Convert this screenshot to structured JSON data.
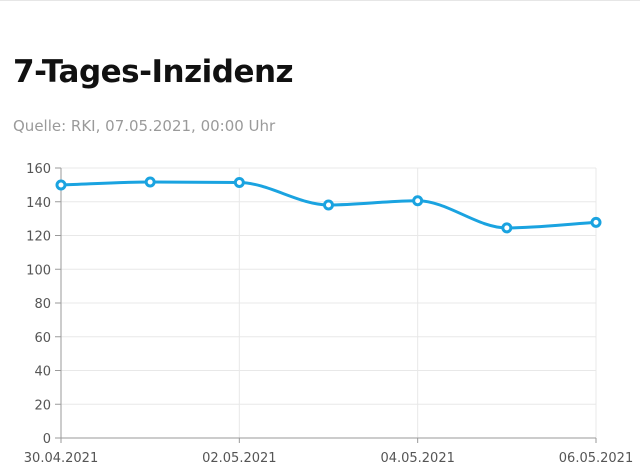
{
  "header": {
    "title": "7-Tages-Inzidenz",
    "source": "Quelle: RKI, 07.05.2021, 00:00 Uhr"
  },
  "colors": {
    "line": "#1aa3e0",
    "grid": "#e8e8e8",
    "axis": "#9a9a9a"
  },
  "chart_data": {
    "type": "line",
    "x": [
      "30.04.2021",
      "01.05.2021",
      "02.05.2021",
      "03.05.2021",
      "04.05.2021",
      "05.05.2021",
      "06.05.2021"
    ],
    "x_tick_labels": [
      "30.04.2021",
      "02.05.2021",
      "04.05.2021",
      "06.05.2021"
    ],
    "series": [
      {
        "values": [
          149.9,
          151.7,
          151.4,
          138.1,
          140.6,
          124.5,
          127.8
        ]
      }
    ],
    "y_ticks": [
      0,
      20,
      40,
      60,
      80,
      100,
      120,
      140,
      160
    ],
    "ylim": [
      0,
      160
    ],
    "grid": true,
    "smooth": true,
    "legend": "none"
  }
}
